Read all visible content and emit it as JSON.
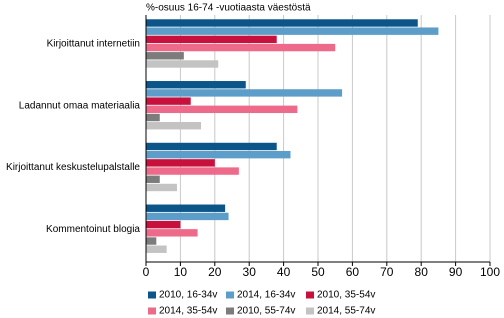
{
  "chart_data": {
    "type": "barh",
    "title": "%-osuus 16-74 -vuotiaasta väestöstä",
    "categories": [
      "Kirjoittanut internetiin",
      "Ladannut omaa materiaalia",
      "Kirjoittanut keskustelupalstalle",
      "Kommentoinut blogia"
    ],
    "series": [
      {
        "name": "2010, 16-34v",
        "color": "#0b5589",
        "values": [
          79,
          29,
          38,
          23
        ]
      },
      {
        "name": "2014, 16-34v",
        "color": "#5c9dc9",
        "values": [
          85,
          57,
          42,
          24
        ]
      },
      {
        "name": "2010, 35-54v",
        "color": "#c8103d",
        "values": [
          38,
          13,
          20,
          10
        ]
      },
      {
        "name": "2014, 35-54v",
        "color": "#ee6a8b",
        "values": [
          55,
          44,
          27,
          15
        ]
      },
      {
        "name": "2010, 55-74v",
        "color": "#7c7c7c",
        "values": [
          11,
          4,
          4,
          3
        ]
      },
      {
        "name": "2014, 55-74v",
        "color": "#c3c3c3",
        "values": [
          21,
          16,
          9,
          6
        ]
      }
    ],
    "xlim": [
      0,
      100
    ],
    "xticks": [
      0,
      10,
      20,
      30,
      40,
      50,
      60,
      70,
      80,
      90,
      100
    ],
    "grid": true
  }
}
